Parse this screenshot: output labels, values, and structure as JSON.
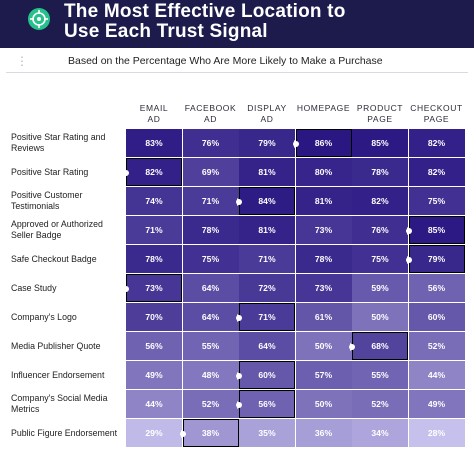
{
  "header": {
    "title_line1": "The Most Effective Location to",
    "title_line2": "Use Each Trust Signal",
    "logo_icon": "target-icon",
    "subtitle": "Based on the Percentage Who Are More Likely to Make a Purchase"
  },
  "chart_data": {
    "type": "heatmap",
    "title": "The Most Effective Location to Use Each Trust Signal",
    "subtitle": "Based on the Percentage Who Are More Likely to Make a Purchase",
    "columns": [
      {
        "line1": "EMAIL",
        "line2": "AD"
      },
      {
        "line1": "FACEBOOK",
        "line2": "AD"
      },
      {
        "line1": "DISPLAY",
        "line2": "AD"
      },
      {
        "line1": "HOMEPAGE",
        "line2": ""
      },
      {
        "line1": "PRODUCT",
        "line2": "PAGE"
      },
      {
        "line1": "CHECKOUT",
        "line2": "PAGE"
      }
    ],
    "rows": [
      {
        "label": "Positive Star Rating and Reviews",
        "values": [
          "83%",
          "76%",
          "79%",
          "86%",
          "85%",
          "82%"
        ],
        "highlight": 3
      },
      {
        "label": "Positive Star Rating",
        "values": [
          "82%",
          "69%",
          "81%",
          "80%",
          "78%",
          "82%"
        ],
        "highlight": 0
      },
      {
        "label": "Positive Customer Testimonials",
        "values": [
          "74%",
          "71%",
          "84%",
          "81%",
          "82%",
          "75%"
        ],
        "highlight": 2
      },
      {
        "label": "Approved or Authorized Seller Badge",
        "values": [
          "71%",
          "78%",
          "81%",
          "73%",
          "76%",
          "85%"
        ],
        "highlight": 5
      },
      {
        "label": "Safe Checkout Badge",
        "values": [
          "78%",
          "75%",
          "71%",
          "78%",
          "75%",
          "79%"
        ],
        "highlight": 5
      },
      {
        "label": "Case Study",
        "values": [
          "73%",
          "64%",
          "72%",
          "73%",
          "59%",
          "56%"
        ],
        "highlight": 0
      },
      {
        "label": "Company's Logo",
        "values": [
          "70%",
          "64%",
          "71%",
          "61%",
          "50%",
          "60%"
        ],
        "highlight": 2
      },
      {
        "label": "Media Publisher Quote",
        "values": [
          "56%",
          "55%",
          "64%",
          "50%",
          "68%",
          "52%"
        ],
        "highlight": 4
      },
      {
        "label": "Influencer Endorsement",
        "values": [
          "49%",
          "48%",
          "60%",
          "57%",
          "55%",
          "44%"
        ],
        "highlight": 2
      },
      {
        "label": "Company's Social Media Metrics",
        "values": [
          "44%",
          "52%",
          "56%",
          "50%",
          "52%",
          "49%"
        ],
        "highlight": 2
      },
      {
        "label": "Public Figure Endorsement",
        "values": [
          "29%",
          "38%",
          "35%",
          "36%",
          "34%",
          "28%"
        ],
        "highlight": 1
      }
    ],
    "color_scale": {
      "low": "#c6c1ec",
      "high": "#2a1782",
      "min": 28,
      "max": 86
    }
  }
}
